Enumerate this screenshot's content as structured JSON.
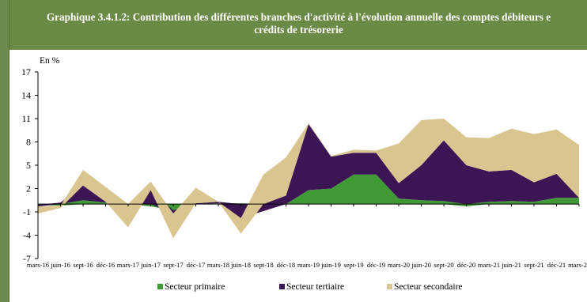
{
  "title": {
    "line1": "Graphique 3.4.1.2: Contribution des différentes branches d'activité à l'évolution annuelle des comptes débiteurs e",
    "line2": "crédits de trésorerie"
  },
  "colors": {
    "title_bg": "#6b8a46",
    "primaire": "#3f9a36",
    "tertiaire": "#3c1654",
    "secondaire": "#d9c58f"
  },
  "chart_data": {
    "type": "area",
    "stacked": true,
    "unit_label": "En %",
    "ylim": [
      -7,
      17
    ],
    "yticks": [
      17,
      14,
      11,
      8,
      5,
      2,
      -1,
      -4,
      -7
    ],
    "x": [
      "mars-16",
      "juin-16",
      "sept-16",
      "déc-16",
      "mars-17",
      "juin-17",
      "sept-17",
      "déc-17",
      "mars-18",
      "juin-18",
      "sept-18",
      "déc-18",
      "mars-19",
      "juin-19",
      "sept-19",
      "déc-19",
      "mars-20",
      "juin-20",
      "sept-20",
      "déc-20",
      "mars-21",
      "juin-21",
      "sept-21",
      "déc-21",
      "mars-22"
    ],
    "xtick_labels": [
      "mars-16",
      "juin-16",
      "sept-16",
      "déc-16",
      "mars-17",
      "juin-17",
      "sept-17",
      "déc-17",
      "mars-18",
      "juin-18",
      "sept-18",
      "déc-18",
      "mars-19",
      "juin-19",
      "sept-19",
      "déc-19",
      "mars-20",
      "juin-20",
      "sept-20",
      "déc-20",
      "mars-21",
      "juin-21",
      "sept-21",
      "déc-21",
      "mars-2"
    ],
    "series": [
      {
        "name": "Secteur primaire",
        "color": "#3f9a36",
        "values": [
          -0.1,
          -0.2,
          0.5,
          0.2,
          0.0,
          -0.3,
          -0.8,
          0.0,
          0.1,
          0.1,
          0.0,
          0.0,
          1.8,
          2.0,
          3.8,
          3.8,
          0.7,
          0.5,
          0.4,
          -0.3,
          0.3,
          0.4,
          0.3,
          0.8,
          0.8
        ]
      },
      {
        "name": "Secteur tertiaire",
        "color": "#3c1654",
        "values": [
          -0.2,
          0.2,
          1.9,
          0.1,
          0.0,
          1.8,
          -0.4,
          0.1,
          0.2,
          -1.8,
          -0.9,
          1.1,
          8.5,
          4.1,
          2.8,
          2.8,
          2.0,
          4.5,
          7.8,
          5.0,
          3.9,
          4.0,
          2.5,
          3.1,
          0.0
        ]
      },
      {
        "name": "Secteur secondaire",
        "color": "#d9c58f",
        "values": [
          -0.9,
          -0.3,
          2.0,
          1.9,
          -3.0,
          1.1,
          -3.2,
          2.0,
          0.0,
          -2.0,
          3.8,
          4.9,
          0.1,
          0.1,
          0.4,
          0.3,
          5.1,
          5.8,
          2.8,
          3.6,
          4.3,
          5.3,
          6.2,
          5.7,
          6.8
        ]
      }
    ],
    "legend": {
      "position": "bottom",
      "items": [
        "Secteur primaire",
        "Secteur tertiaire",
        "Secteur secondaire"
      ]
    },
    "grid": false
  }
}
